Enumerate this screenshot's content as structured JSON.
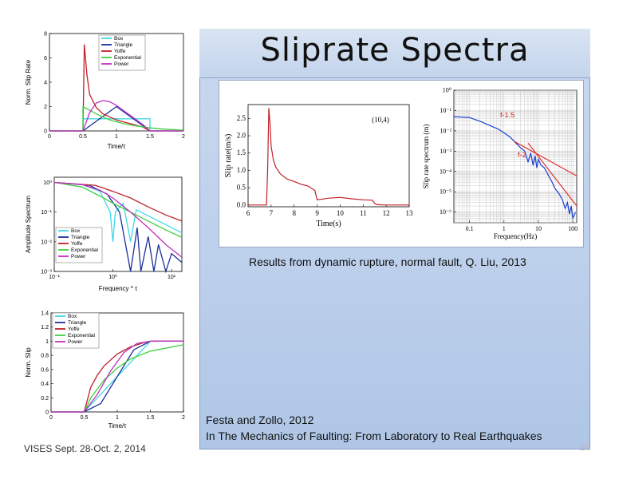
{
  "slide": {
    "title": "Sliprate Spectra",
    "caption_results": "Results from dynamic rupture, normal fault, Q. Liu, 2013",
    "caption_source_line1": "Festa and Zollo, 2012",
    "caption_source_line2": "In The Mechanics of Faulting: From Laboratory to Real Earthquakes",
    "footer_left": "VISES Sept. 28-Oct. 2, 2014",
    "footer_right": "26"
  },
  "colors": {
    "box": "#40d8e8",
    "triangle": "#1a2f9c",
    "yoffe": "#c0202a",
    "exponential": "#40d040",
    "power": "#c030c0"
  },
  "chart_data": [
    {
      "type": "line",
      "ylabel": "Norm. Slip Rate",
      "xlabel": "Time/τ",
      "xticks": [
        "0",
        "0.5",
        "1",
        "1.5",
        "2"
      ],
      "yticks": [
        "0",
        "2",
        "4",
        "6",
        "8"
      ],
      "xlim": [
        0,
        2
      ],
      "ylim": [
        0,
        8
      ],
      "legend": [
        "Box",
        "Triangle",
        "Yoffe",
        "Exponential",
        "Power"
      ],
      "series": [
        {
          "name": "Box",
          "x": [
            0,
            0.5,
            0.5,
            1.5,
            1.5,
            2
          ],
          "y": [
            0,
            0,
            1,
            1,
            0,
            0
          ]
        },
        {
          "name": "Triangle",
          "x": [
            0,
            0.5,
            1.0,
            1.5,
            2
          ],
          "y": [
            0,
            0,
            2,
            0,
            0
          ]
        },
        {
          "name": "Yoffe",
          "x": [
            0,
            0.5,
            0.52,
            0.56,
            0.6,
            0.7,
            0.8,
            1.0,
            1.2,
            1.4,
            1.5,
            2
          ],
          "y": [
            0,
            0,
            7.1,
            4.6,
            3.0,
            1.9,
            1.4,
            0.9,
            0.6,
            0.3,
            0,
            0
          ]
        },
        {
          "name": "Exponential",
          "x": [
            0,
            0.5,
            0.5,
            0.7,
            0.9,
            1.1,
            1.3,
            1.5,
            1.7,
            2
          ],
          "y": [
            0,
            0,
            2.0,
            1.4,
            0.9,
            0.6,
            0.4,
            0.25,
            0.15,
            0.05
          ]
        },
        {
          "name": "Power",
          "x": [
            0,
            0.5,
            0.6,
            0.7,
            0.8,
            0.9,
            1.0,
            1.1,
            1.2,
            1.3,
            1.4,
            1.5,
            2
          ],
          "y": [
            0,
            0,
            1.5,
            2.3,
            2.5,
            2.4,
            2.1,
            1.7,
            1.3,
            0.9,
            0.5,
            0,
            0
          ]
        }
      ]
    },
    {
      "type": "line",
      "ylabel": "Amplitude Spectrum",
      "xlabel": "Frequency * τ",
      "xticks": [
        "10⁻¹",
        "10⁰",
        "10¹"
      ],
      "yticks": [
        "10⁻³",
        "10⁻²",
        "10⁻¹",
        "10⁰"
      ],
      "xscale": "log",
      "yscale": "log",
      "xlim": [
        0.1,
        15
      ],
      "ylim": [
        0.001,
        1.5
      ],
      "legend": [
        "Box",
        "Triangle",
        "Yoffe",
        "Exponential",
        "Power"
      ],
      "series": [
        {
          "name": "Box",
          "x": [
            0.1,
            0.3,
            0.6,
            0.9,
            1.0,
            1.1,
            1.5,
            2.0,
            2.5,
            3,
            5,
            10,
            15
          ],
          "y": [
            1.0,
            0.85,
            0.5,
            0.1,
            0.01,
            0.1,
            0.2,
            0.01,
            0.12,
            0.1,
            0.06,
            0.03,
            0.02
          ]
        },
        {
          "name": "Triangle",
          "x": [
            0.1,
            0.4,
            0.8,
            1.3,
            2.0,
            2.6,
            3.0,
            4.0,
            5.0,
            6.0,
            8.0,
            10,
            15
          ],
          "y": [
            1.0,
            0.8,
            0.4,
            0.1,
            0.001,
            0.03,
            0.001,
            0.015,
            0.001,
            0.008,
            0.001,
            0.004,
            0.002
          ]
        },
        {
          "name": "Yoffe",
          "x": [
            0.1,
            0.5,
            1.0,
            2.0,
            4.0,
            8.0,
            15
          ],
          "y": [
            1.0,
            0.8,
            0.5,
            0.3,
            0.15,
            0.08,
            0.05
          ]
        },
        {
          "name": "Exponential",
          "x": [
            0.1,
            0.3,
            0.6,
            1.0,
            2.0,
            4.0,
            8.0,
            15
          ],
          "y": [
            1.0,
            0.7,
            0.35,
            0.2,
            0.1,
            0.05,
            0.025,
            0.014
          ]
        },
        {
          "name": "Power",
          "x": [
            0.1,
            0.3,
            0.6,
            1.0,
            2.0,
            4.0,
            8.0,
            15
          ],
          "y": [
            1.0,
            0.85,
            0.55,
            0.3,
            0.1,
            0.03,
            0.008,
            0.003
          ]
        }
      ]
    },
    {
      "type": "line",
      "ylabel": "Norm. Slip",
      "xlabel": "Time/τ",
      "xticks": [
        "0",
        "0.5",
        "1",
        "1.5",
        "2"
      ],
      "yticks": [
        "0",
        "0.2",
        "0.4",
        "0.6",
        "0.8",
        "1",
        "1.2",
        "1.4"
      ],
      "xlim": [
        0,
        2
      ],
      "ylim": [
        0,
        1.4
      ],
      "legend": [
        "Box",
        "Triangle",
        "Yoffe",
        "Exponential",
        "Power"
      ],
      "series": [
        {
          "name": "Box",
          "x": [
            0,
            0.5,
            1.0,
            1.5,
            2
          ],
          "y": [
            0,
            0,
            0.5,
            1.0,
            1.0
          ]
        },
        {
          "name": "Triangle",
          "x": [
            0,
            0.5,
            0.75,
            1.0,
            1.25,
            1.5,
            2
          ],
          "y": [
            0,
            0,
            0.12,
            0.5,
            0.88,
            1.0,
            1.0
          ]
        },
        {
          "name": "Yoffe",
          "x": [
            0,
            0.5,
            0.6,
            0.7,
            0.8,
            1.0,
            1.2,
            1.4,
            1.5,
            2
          ],
          "y": [
            0,
            0,
            0.35,
            0.52,
            0.65,
            0.82,
            0.92,
            0.98,
            1.0,
            1.0
          ]
        },
        {
          "name": "Exponential",
          "x": [
            0,
            0.5,
            0.6,
            0.8,
            1.0,
            1.2,
            1.5,
            2
          ],
          "y": [
            0,
            0,
            0.2,
            0.45,
            0.62,
            0.75,
            0.86,
            0.95
          ]
        },
        {
          "name": "Power",
          "x": [
            0,
            0.5,
            0.7,
            0.9,
            1.1,
            1.3,
            1.5,
            2
          ],
          "y": [
            0,
            0,
            0.25,
            0.58,
            0.84,
            0.97,
            1.0,
            1.0
          ]
        }
      ]
    },
    {
      "type": "line",
      "ylabel": "Slip rate(m/s)",
      "xlabel": "Time(s)",
      "annotation": "(10,4)",
      "xticks": [
        "6",
        "7",
        "8",
        "9",
        "10",
        "11",
        "12",
        "13"
      ],
      "yticks": [
        "0.0",
        "0.5",
        "1.0",
        "1.5",
        "2.0",
        "2.5"
      ],
      "xlim": [
        6,
        13
      ],
      "ylim": [
        -0.05,
        2.9
      ],
      "series": [
        {
          "name": "",
          "x": [
            6,
            6.8,
            6.85,
            6.9,
            6.95,
            7.0,
            7.1,
            7.2,
            7.4,
            7.7,
            8.0,
            8.3,
            8.6,
            8.9,
            9.0,
            9.5,
            10.0,
            10.5,
            11.0,
            11.4,
            11.5,
            11.6,
            12,
            13
          ],
          "y": [
            0,
            0,
            1.0,
            2.8,
            2.4,
            1.7,
            1.3,
            1.1,
            0.9,
            0.75,
            0.68,
            0.6,
            0.55,
            0.42,
            0.15,
            0.2,
            0.22,
            0.18,
            0.15,
            0.14,
            0.05,
            0.01,
            0,
            0
          ]
        }
      ]
    },
    {
      "type": "line",
      "ylabel": "Slip rate spectrum (m)",
      "xlabel": "Frequency(Hz)",
      "xscale": "log",
      "yscale": "log",
      "xticks": [
        "0.1",
        "1",
        "10",
        "100"
      ],
      "yticks": [
        "10⁻⁶",
        "10⁻⁵",
        "10⁻⁴",
        "10⁻³",
        "10⁻²",
        "10⁻¹",
        "10⁰"
      ],
      "xlim": [
        0.035,
        130
      ],
      "ylim": [
        3e-07,
        1
      ],
      "annotations": [
        "f-1.5",
        "f-2"
      ],
      "series": [
        {
          "name": "",
          "x": [
            0.035,
            0.1,
            0.2,
            0.4,
            0.7,
            1.0,
            1.5,
            2,
            3,
            4,
            5,
            6,
            7,
            8,
            9,
            10,
            12,
            15,
            20,
            25,
            30,
            40,
            50,
            60,
            70,
            80,
            90,
            100,
            120
          ],
          "y": [
            0.05,
            0.045,
            0.03,
            0.018,
            0.012,
            0.008,
            0.005,
            0.003,
            0.0015,
            0.001,
            0.0003,
            0.0008,
            0.0002,
            0.0006,
            0.00015,
            0.0004,
            0.0002,
            0.00015,
            6e-05,
            3e-05,
            1.5e-05,
            8e-06,
            4e-06,
            1.5e-06,
            3e-06,
            8e-07,
            2e-06,
            5e-07,
            1e-06
          ]
        },
        {
          "name": "f-1.5 fit",
          "x": [
            2,
            130
          ],
          "y": [
            0.003,
            6e-05
          ]
        },
        {
          "name": "f-2 fit",
          "x": [
            5,
            130
          ],
          "y": [
            0.0025,
            2e-06
          ]
        }
      ]
    }
  ]
}
